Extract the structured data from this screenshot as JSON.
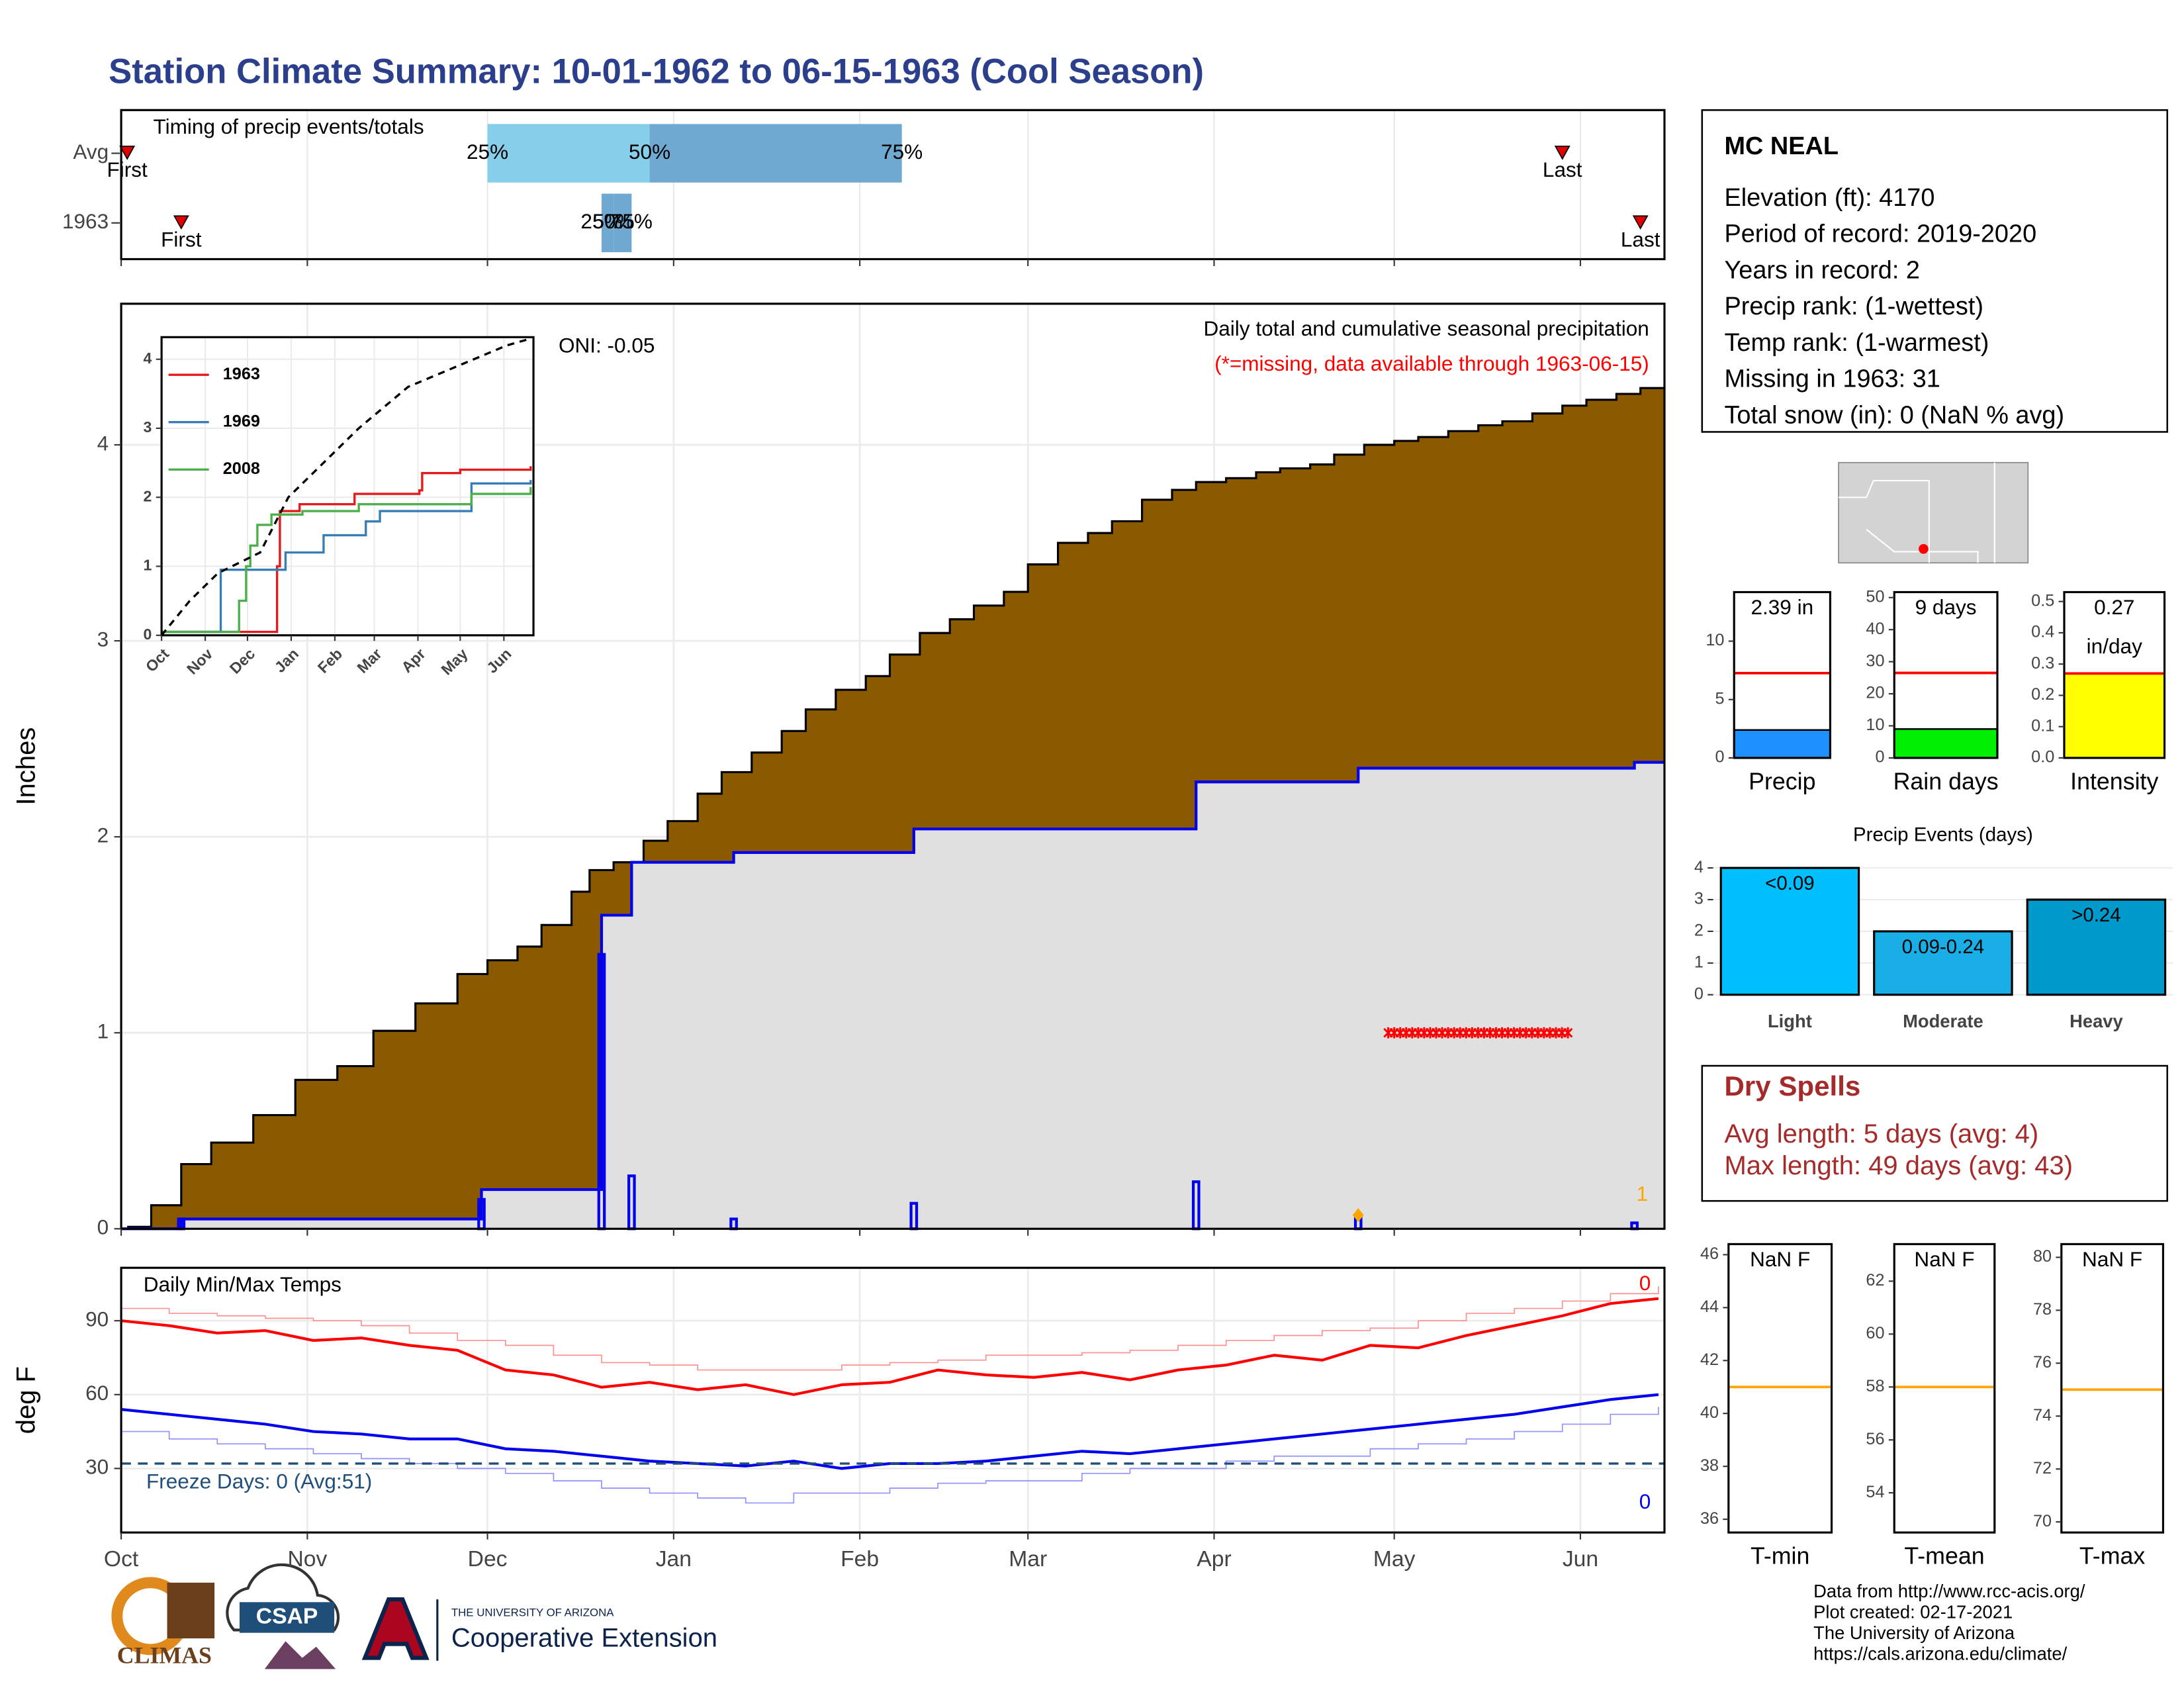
{
  "title": "Station Climate Summary: 10-01-1962 to 06-15-1963 (Cool Season)",
  "station": {
    "name": "MC NEAL",
    "lines": [
      "Elevation (ft): 4170",
      "Period of record: 2019-2020",
      "Years in record: 2",
      "Precip rank:  (1-wettest)",
      "Temp rank:  (1-warmest)",
      "Missing in 1963: 31",
      "Total snow (in): 0 (NaN % avg)"
    ]
  },
  "dry_spells": {
    "title": "Dry Spells",
    "lines": [
      "Avg length: 5 days (avg: 4)",
      "Max length: 49 days (avg: 43)"
    ]
  },
  "footer": [
    "Data from http://www.rcc-acis.org/",
    "Plot created: 02-17-2021",
    "The University of Arizona",
    "https://cals.arizona.edu/climate/"
  ],
  "logos": [
    "CLIMAS",
    "CSAP",
    "THE UNIVERSITY OF ARIZONA",
    "Cooperative Extension"
  ],
  "chart_data": [
    {
      "type": "timing",
      "title": "Timing of precip events/totals",
      "xlim": [
        0,
        257
      ],
      "xticks": [
        0,
        31,
        61,
        92,
        123,
        151,
        182,
        212,
        243
      ],
      "colors": [
        "#87ceeb",
        "#6fa8d0"
      ],
      "marker_color": "#e00000",
      "rows": [
        {
          "label": "Avg",
          "first": 1,
          "first_label": "First",
          "last": 240,
          "last_label": "Last",
          "q25": 61,
          "q50": 88,
          "q75": 130,
          "q_labels": [
            "25%",
            "50%",
            "75%"
          ]
        },
        {
          "label": "1963",
          "first": 10,
          "first_label": "First",
          "last": 253,
          "last_label": "Last",
          "q25": 80,
          "q50": 82,
          "q75": 85,
          "q_labels": [
            "25%",
            "50%",
            "75%"
          ]
        }
      ]
    },
    {
      "type": "cumulative",
      "ylabel": "Inches",
      "ylim": [
        0,
        4.72
      ],
      "yticks": [
        0,
        1,
        2,
        3,
        4
      ],
      "xlim": [
        0,
        257
      ],
      "xticks": [
        0,
        31,
        61,
        92,
        123,
        151,
        182,
        212,
        243
      ],
      "grid": true,
      "annotations": [
        "ONI: -0.05",
        "Daily total and cumulative seasonal precipitation",
        "(*=missing, data available through 1963-06-15)"
      ],
      "average": {
        "color": "#8b5a00",
        "x": [
          1,
          5,
          10,
          15,
          22,
          29,
          36,
          42,
          49,
          56,
          61,
          66,
          70,
          75,
          78,
          82,
          87,
          91,
          96,
          100,
          105,
          110,
          114,
          119,
          124,
          128,
          133,
          138,
          142,
          147,
          151,
          156,
          161,
          165,
          170,
          175,
          179,
          184,
          189,
          193,
          198,
          202,
          207,
          212,
          216,
          221,
          226,
          230,
          235,
          240,
          244,
          249,
          253,
          257
        ],
        "values": [
          0.01,
          0.12,
          0.33,
          0.44,
          0.58,
          0.76,
          0.83,
          1.01,
          1.15,
          1.3,
          1.37,
          1.44,
          1.55,
          1.72,
          1.83,
          1.87,
          1.98,
          2.08,
          2.22,
          2.33,
          2.43,
          2.54,
          2.65,
          2.75,
          2.82,
          2.93,
          3.04,
          3.11,
          3.18,
          3.25,
          3.39,
          3.5,
          3.55,
          3.61,
          3.72,
          3.77,
          3.81,
          3.83,
          3.86,
          3.88,
          3.9,
          3.95,
          4.0,
          4.02,
          4.04,
          4.07,
          4.1,
          4.12,
          4.16,
          4.2,
          4.23,
          4.26,
          4.29,
          4.3
        ]
      },
      "season": {
        "color": "#0000ee",
        "x": [
          0,
          10,
          60,
          80,
          85,
          102,
          132,
          179,
          206,
          252,
          257
        ],
        "values": [
          0,
          0.05,
          0.2,
          1.6,
          1.87,
          1.92,
          2.04,
          2.28,
          2.35,
          2.38,
          2.38
        ]
      },
      "daily": {
        "color": "#0000ee",
        "x": [
          10,
          60,
          80,
          85,
          102,
          132,
          179,
          206,
          252
        ],
        "values": [
          0.05,
          0.15,
          1.4,
          0.27,
          0.05,
          0.13,
          0.24,
          0.07,
          0.03
        ]
      },
      "highlight": {
        "x": 206,
        "value": 0.07,
        "color": "#ffa500"
      },
      "missing": {
        "x": [
          211,
          241
        ],
        "y": 1,
        "color": "#ff0000"
      },
      "count_label": "1",
      "count_color": "#ffa500"
    },
    {
      "type": "step_lines",
      "xlim": [
        0,
        264
      ],
      "ylim": [
        0,
        4.32
      ],
      "yticks": [
        0,
        1,
        2,
        3,
        4
      ],
      "xticks": [
        {
          "value": 0,
          "label": "Oct"
        },
        {
          "value": 31,
          "label": "Nov"
        },
        {
          "value": 61,
          "label": "Dec"
        },
        {
          "value": 92,
          "label": "Jan"
        },
        {
          "value": 123,
          "label": "Feb"
        },
        {
          "value": 151,
          "label": "Mar"
        },
        {
          "value": 182,
          "label": "Apr"
        },
        {
          "value": 212,
          "label": "May"
        },
        {
          "value": 243,
          "label": "Jun"
        }
      ],
      "average": {
        "color": "#000000",
        "x": [
          0,
          20,
          40,
          70,
          90,
          140,
          175,
          210,
          245,
          262
        ],
        "values": [
          0,
          0.5,
          0.9,
          1.2,
          2.0,
          3.0,
          3.6,
          3.9,
          4.2,
          4.3
        ]
      },
      "series": [
        {
          "name": "1963",
          "color": "#e41a1c",
          "x": [
            0,
            81,
            82,
            84,
            98,
            137,
            183,
            185,
            212,
            262
          ],
          "values": [
            0.05,
            0.05,
            1.0,
            1.8,
            1.9,
            2.05,
            2.1,
            2.35,
            2.4,
            2.45
          ]
        },
        {
          "name": "1969",
          "color": "#377eb8",
          "x": [
            0,
            40,
            42,
            86,
            88,
            115,
            145,
            155,
            220,
            262
          ],
          "values": [
            0.05,
            0.05,
            0.95,
            0.95,
            1.2,
            1.45,
            1.65,
            1.8,
            2.2,
            2.25
          ]
        },
        {
          "name": "2008",
          "color": "#4daf4a",
          "x": [
            0,
            50,
            55,
            60,
            63,
            68,
            78,
            100,
            140,
            220,
            262
          ],
          "values": [
            0.05,
            0.05,
            0.5,
            1.0,
            1.3,
            1.6,
            1.75,
            1.8,
            1.9,
            2.05,
            2.15
          ]
        }
      ]
    },
    {
      "type": "temps",
      "title": "Daily Min/Max Temps",
      "ylabel": "deg F",
      "ylim": [
        4,
        111.5
      ],
      "yticks": [
        30,
        60,
        90
      ],
      "xlim": [
        0,
        257
      ],
      "grid": true,
      "xticks": [
        {
          "value": 0,
          "label": "Oct"
        },
        {
          "value": 31,
          "label": "Nov"
        },
        {
          "value": 61,
          "label": "Dec"
        },
        {
          "value": 92,
          "label": "Jan"
        },
        {
          "value": 123,
          "label": "Feb"
        },
        {
          "value": 151,
          "label": "Mar"
        },
        {
          "value": 182,
          "label": "Apr"
        },
        {
          "value": 212,
          "label": "May"
        },
        {
          "value": 243,
          "label": "Jun"
        }
      ],
      "x": [
        0,
        8,
        16,
        24,
        32,
        40,
        48,
        56,
        64,
        72,
        80,
        88,
        96,
        104,
        112,
        120,
        128,
        136,
        144,
        152,
        160,
        168,
        176,
        184,
        192,
        200,
        208,
        216,
        224,
        232,
        240,
        248,
        256
      ],
      "series": [
        {
          "color": "#ff9090",
          "width": 0.8,
          "step": true,
          "values": [
            95,
            93,
            92,
            91,
            90,
            88,
            85,
            82,
            80,
            76,
            73,
            72,
            70,
            70,
            70,
            72,
            73,
            74,
            76,
            76,
            77,
            78,
            80,
            82,
            84,
            86,
            87,
            90,
            93,
            95,
            98,
            101,
            104
          ]
        },
        {
          "color": "#9090ff",
          "width": 0.8,
          "step": true,
          "values": [
            45,
            42,
            40,
            38,
            36,
            34,
            32,
            30,
            28,
            25,
            22,
            20,
            18,
            16,
            20,
            20,
            22,
            24,
            25,
            25,
            28,
            30,
            30,
            33,
            35,
            35,
            38,
            40,
            42,
            45,
            48,
            52,
            55
          ]
        },
        {
          "color": "#ff0000",
          "width": 2,
          "step": false,
          "values": [
            90,
            88,
            85,
            86,
            82,
            83,
            80,
            78,
            70,
            68,
            63,
            65,
            62,
            64,
            60,
            64,
            65,
            70,
            68,
            67,
            69,
            66,
            70,
            72,
            76,
            74,
            80,
            79,
            84,
            88,
            92,
            97,
            99
          ]
        },
        {
          "color": "#0000ee",
          "width": 2,
          "step": false,
          "values": [
            54,
            52,
            50,
            48,
            45,
            44,
            42,
            42,
            38,
            37,
            35,
            33,
            32,
            31,
            33,
            30,
            32,
            32,
            33,
            35,
            37,
            36,
            38,
            40,
            42,
            44,
            46,
            48,
            50,
            52,
            55,
            58,
            60
          ]
        }
      ],
      "freeze": {
        "value": 32,
        "color": "#1f4e79",
        "label": "Freeze Days: 0 (Avg:51)"
      },
      "max_count": "0",
      "min_count": "0"
    },
    {
      "type": "gauge",
      "label": "Precip",
      "ylim": [
        0,
        14.2
      ],
      "yticks": [
        0,
        5,
        10
      ],
      "value": 2.39,
      "value_label": [
        "2.39 in"
      ],
      "avg": 7.26,
      "color": "#1e90ff",
      "avg_color": "#ff0000"
    },
    {
      "type": "gauge",
      "label": "Rain days",
      "ylim": [
        0,
        51.7
      ],
      "yticks": [
        0,
        10,
        20,
        30,
        40,
        50
      ],
      "value": 9,
      "value_label": [
        "9 days"
      ],
      "avg": 26.5,
      "color": "#00ee00",
      "avg_color": "#ff0000"
    },
    {
      "type": "gauge",
      "label": "Intensity",
      "ylim": [
        0,
        0.53
      ],
      "yticks": [
        {
          "value": 0,
          "label": "0.0"
        },
        0.1,
        0.2,
        0.3,
        0.4,
        0.5
      ],
      "value": 0.27,
      "value_label": [
        "0.27",
        "in/day"
      ],
      "avg": 0.27,
      "color": "#ffff00",
      "avg_color": "#ff0000"
    },
    {
      "type": "bar",
      "title": "Precip Events (days)",
      "categories": [
        "Light",
        "Moderate",
        "Heavy"
      ],
      "values": [
        4,
        2,
        3
      ],
      "bin_labels": [
        "<0.09",
        "0.09-0.24",
        ">0.24"
      ],
      "colors": [
        "#00bfff",
        "#19aee6",
        "#0099cc"
      ],
      "ylim": [
        0,
        4.35
      ],
      "yticks": [
        0,
        1,
        2,
        3,
        4
      ],
      "grid": true
    },
    {
      "type": "gauge",
      "label": "T-min",
      "ylim": [
        35.5,
        46.4
      ],
      "yticks": [
        36,
        38,
        40,
        42,
        44,
        46
      ],
      "value": null,
      "value_label": [
        "NaN F"
      ],
      "avg": 41,
      "color": "#cccccc",
      "avg_color": "#ffa500"
    },
    {
      "type": "gauge",
      "label": "T-mean",
      "ylim": [
        52.5,
        63.4
      ],
      "yticks": [
        54,
        56,
        58,
        60,
        62
      ],
      "value": null,
      "value_label": [
        "NaN F"
      ],
      "avg": 58,
      "color": "#cccccc",
      "avg_color": "#ffa500"
    },
    {
      "type": "gauge",
      "label": "T-max",
      "ylim": [
        69.6,
        80.5
      ],
      "yticks": [
        70,
        72,
        74,
        76,
        78,
        80
      ],
      "value": null,
      "value_label": [
        "NaN F"
      ],
      "avg": 75,
      "color": "#cccccc",
      "avg_color": "#ffa500"
    }
  ]
}
